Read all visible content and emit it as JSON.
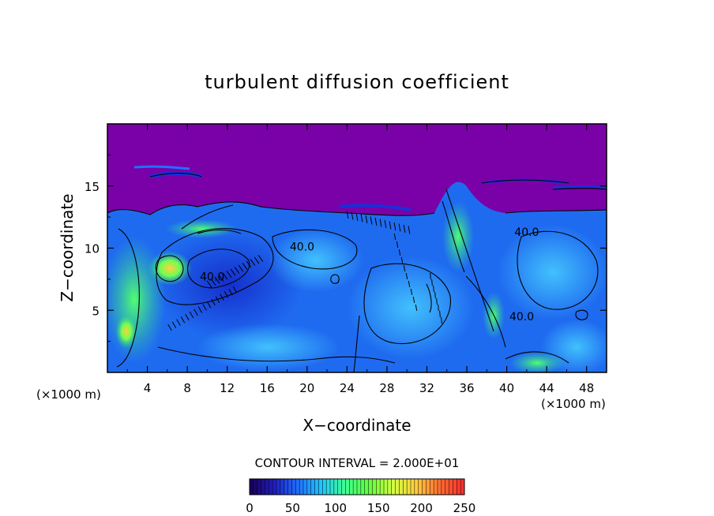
{
  "chart_data": {
    "type": "heatmap",
    "title": "turbulent diffusion coefficient",
    "xlabel": "X−coordinate",
    "ylabel": "Z−coordinate",
    "x_unit": "(×1000 m)",
    "x_unit_right": "(×1000 m)",
    "xlim": [
      0,
      50
    ],
    "ylim": [
      0,
      20
    ],
    "x_ticks": [
      4,
      8,
      12,
      16,
      20,
      24,
      28,
      32,
      36,
      40,
      44,
      48
    ],
    "y_ticks": [
      5,
      10,
      15
    ],
    "contour_interval_text": "CONTOUR INTERVAL = 2.000E+01",
    "contour_labels": [
      {
        "text": "40.0",
        "x": 19.5,
        "z": 9.8
      },
      {
        "text": "40.0",
        "x": 10.5,
        "z": 7.4
      },
      {
        "text": "40.0",
        "x": 42.0,
        "z": 11.0
      },
      {
        "text": "40.0",
        "x": 41.5,
        "z": 4.2
      }
    ],
    "colorbar": {
      "min": 0,
      "max": 250,
      "tick_values": [
        0,
        50,
        100,
        150,
        200,
        250
      ],
      "colors": [
        "#1a0060",
        "#2020c0",
        "#2070ff",
        "#20c8ff",
        "#40ff90",
        "#60ff40",
        "#d0ff40",
        "#ffd040",
        "#ff7030",
        "#ff3030"
      ]
    },
    "colors": {
      "background_top": "#7a00a8",
      "field_main": "#1f6bf0",
      "field_light": "#3fb8ff",
      "field_deep": "#1a2fd8",
      "contour": "#000000"
    }
  }
}
